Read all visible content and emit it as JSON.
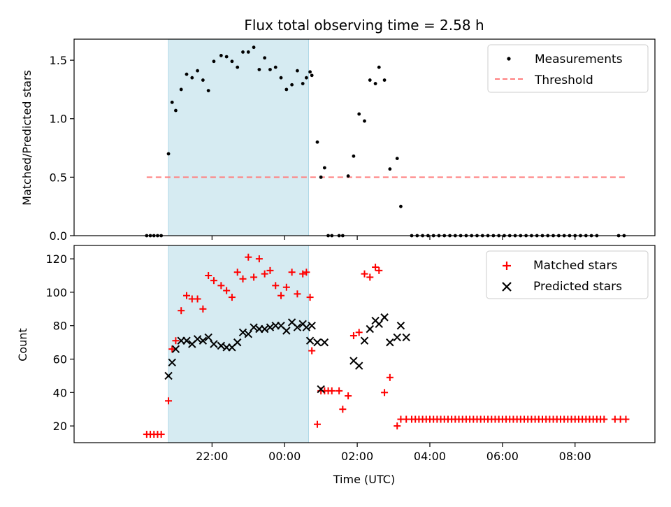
{
  "chart_data": [
    {
      "type": "scatter",
      "title": "Flux total observing time = 2.58 h",
      "ylabel": "Matched/Predicted stars",
      "xlabel": "",
      "ylim": [
        0,
        1.68
      ],
      "yticks": [
        "0.0",
        "0.5",
        "1.0",
        "1.5"
      ],
      "legend": {
        "position": "top-right",
        "entries": [
          "Measurements",
          "Threshold"
        ]
      },
      "shaded_interval": {
        "start_h": 20.8,
        "end_h": 24.66,
        "color": "#add8e6"
      },
      "threshold": {
        "value": 0.5,
        "x_start_h": 20.2,
        "x_end_h": 33.4,
        "color": "#ff7f7f"
      },
      "series": [
        {
          "name": "Measurements",
          "color": "#000000",
          "x_h": [
            20.2,
            20.3,
            20.4,
            20.5,
            20.6,
            20.8,
            20.9,
            21.0,
            21.15,
            21.3,
            21.45,
            21.6,
            21.75,
            21.9,
            22.05,
            22.25,
            22.4,
            22.55,
            22.7,
            22.85,
            23.0,
            23.15,
            23.3,
            23.45,
            23.6,
            23.75,
            23.9,
            24.05,
            24.2,
            24.35,
            24.5,
            24.6,
            24.7,
            24.75,
            24.9,
            25.0,
            25.1,
            25.2,
            25.3,
            25.5,
            25.6,
            25.75,
            25.9,
            26.05,
            26.2,
            26.35,
            26.5,
            26.6,
            26.75,
            26.9,
            27.1,
            27.2
          ],
          "y": [
            0.0,
            0.0,
            0.0,
            0.0,
            0.0,
            0.7,
            1.14,
            1.07,
            1.25,
            1.38,
            1.35,
            1.41,
            1.33,
            1.24,
            1.49,
            1.54,
            1.53,
            1.49,
            1.44,
            1.57,
            1.57,
            1.61,
            1.42,
            1.52,
            1.42,
            1.44,
            1.35,
            1.25,
            1.29,
            1.41,
            1.3,
            1.35,
            1.4,
            1.37,
            0.8,
            0.5,
            0.58,
            0.0,
            0.0,
            0.0,
            0.0,
            0.51,
            0.68,
            1.04,
            0.98,
            1.33,
            1.3,
            1.44,
            1.33,
            0.57,
            0.66,
            0.25
          ]
        }
      ],
      "zero_band": {
        "start_h": 27.5,
        "end_h": 33.4,
        "step_h": 0.15,
        "value": 0.0
      }
    },
    {
      "type": "scatter",
      "title": "",
      "ylabel": "Count",
      "xlabel": "Time (UTC)",
      "ylim": [
        10,
        128
      ],
      "yticks": [
        "20",
        "40",
        "60",
        "80",
        "100",
        "120"
      ],
      "xticks": [
        "22:00",
        "00:00",
        "02:00",
        "04:00",
        "06:00",
        "08:00"
      ],
      "xlim_h": [
        18.2,
        34.2
      ],
      "legend": {
        "position": "top-right",
        "entries": [
          "Matched stars",
          "Predicted stars"
        ]
      },
      "shaded_interval": {
        "start_h": 20.8,
        "end_h": 24.66,
        "color": "#add8e6"
      },
      "series": [
        {
          "name": "Matched stars",
          "marker": "plus",
          "color": "#ff0000",
          "x_h": [
            20.2,
            20.3,
            20.4,
            20.5,
            20.6,
            20.8,
            20.9,
            21.0,
            21.15,
            21.3,
            21.45,
            21.6,
            21.75,
            21.9,
            22.05,
            22.25,
            22.4,
            22.55,
            22.7,
            22.85,
            23.0,
            23.15,
            23.3,
            23.45,
            23.6,
            23.75,
            23.9,
            24.05,
            24.2,
            24.35,
            24.5,
            24.6,
            24.7,
            24.75,
            24.9,
            25.0,
            25.1,
            25.2,
            25.3,
            25.5,
            25.6,
            25.75,
            25.9,
            26.05,
            26.2,
            26.35,
            26.5,
            26.6,
            26.75,
            26.9,
            27.1,
            27.2,
            27.35
          ],
          "y": [
            15,
            15,
            15,
            15,
            15,
            35,
            66,
            71,
            89,
            98,
            96,
            96,
            90,
            110,
            107,
            104,
            101,
            97,
            112,
            108,
            121,
            109,
            120,
            111,
            113,
            104,
            98,
            103,
            112,
            99,
            111,
            112,
            97,
            65,
            21,
            41,
            41,
            41,
            41,
            41,
            30,
            38,
            74,
            76,
            111,
            109,
            115,
            113,
            40,
            49,
            20,
            24,
            24
          ]
        },
        {
          "name": "Predicted stars",
          "marker": "x",
          "color": "#000000",
          "x_h": [
            20.8,
            20.9,
            21.0,
            21.15,
            21.3,
            21.45,
            21.6,
            21.75,
            21.9,
            22.05,
            22.25,
            22.4,
            22.55,
            22.7,
            22.85,
            23.0,
            23.15,
            23.3,
            23.45,
            23.6,
            23.75,
            23.9,
            24.05,
            24.2,
            24.35,
            24.5,
            24.6,
            24.7,
            24.75,
            24.9,
            25.0,
            25.1,
            25.9,
            26.05,
            26.2,
            26.35,
            26.5,
            26.6,
            26.75,
            26.9,
            27.1,
            27.2,
            27.35
          ],
          "y": [
            50,
            58,
            66,
            71,
            71,
            69,
            72,
            71,
            73,
            69,
            68,
            67,
            67,
            70,
            76,
            75,
            79,
            78,
            78,
            79,
            80,
            80,
            77,
            82,
            79,
            81,
            79,
            71,
            80,
            70,
            42,
            70,
            59,
            56,
            71,
            78,
            83,
            81,
            85,
            70,
            73,
            80,
            73
          ]
        }
      ],
      "matched_tail": {
        "start_h": 27.5,
        "end_h": 32.8,
        "step_h": 0.1,
        "value": 24
      },
      "matched_end": {
        "x_h": [
          33.1,
          33.25,
          33.4
        ],
        "value": 24
      }
    }
  ]
}
